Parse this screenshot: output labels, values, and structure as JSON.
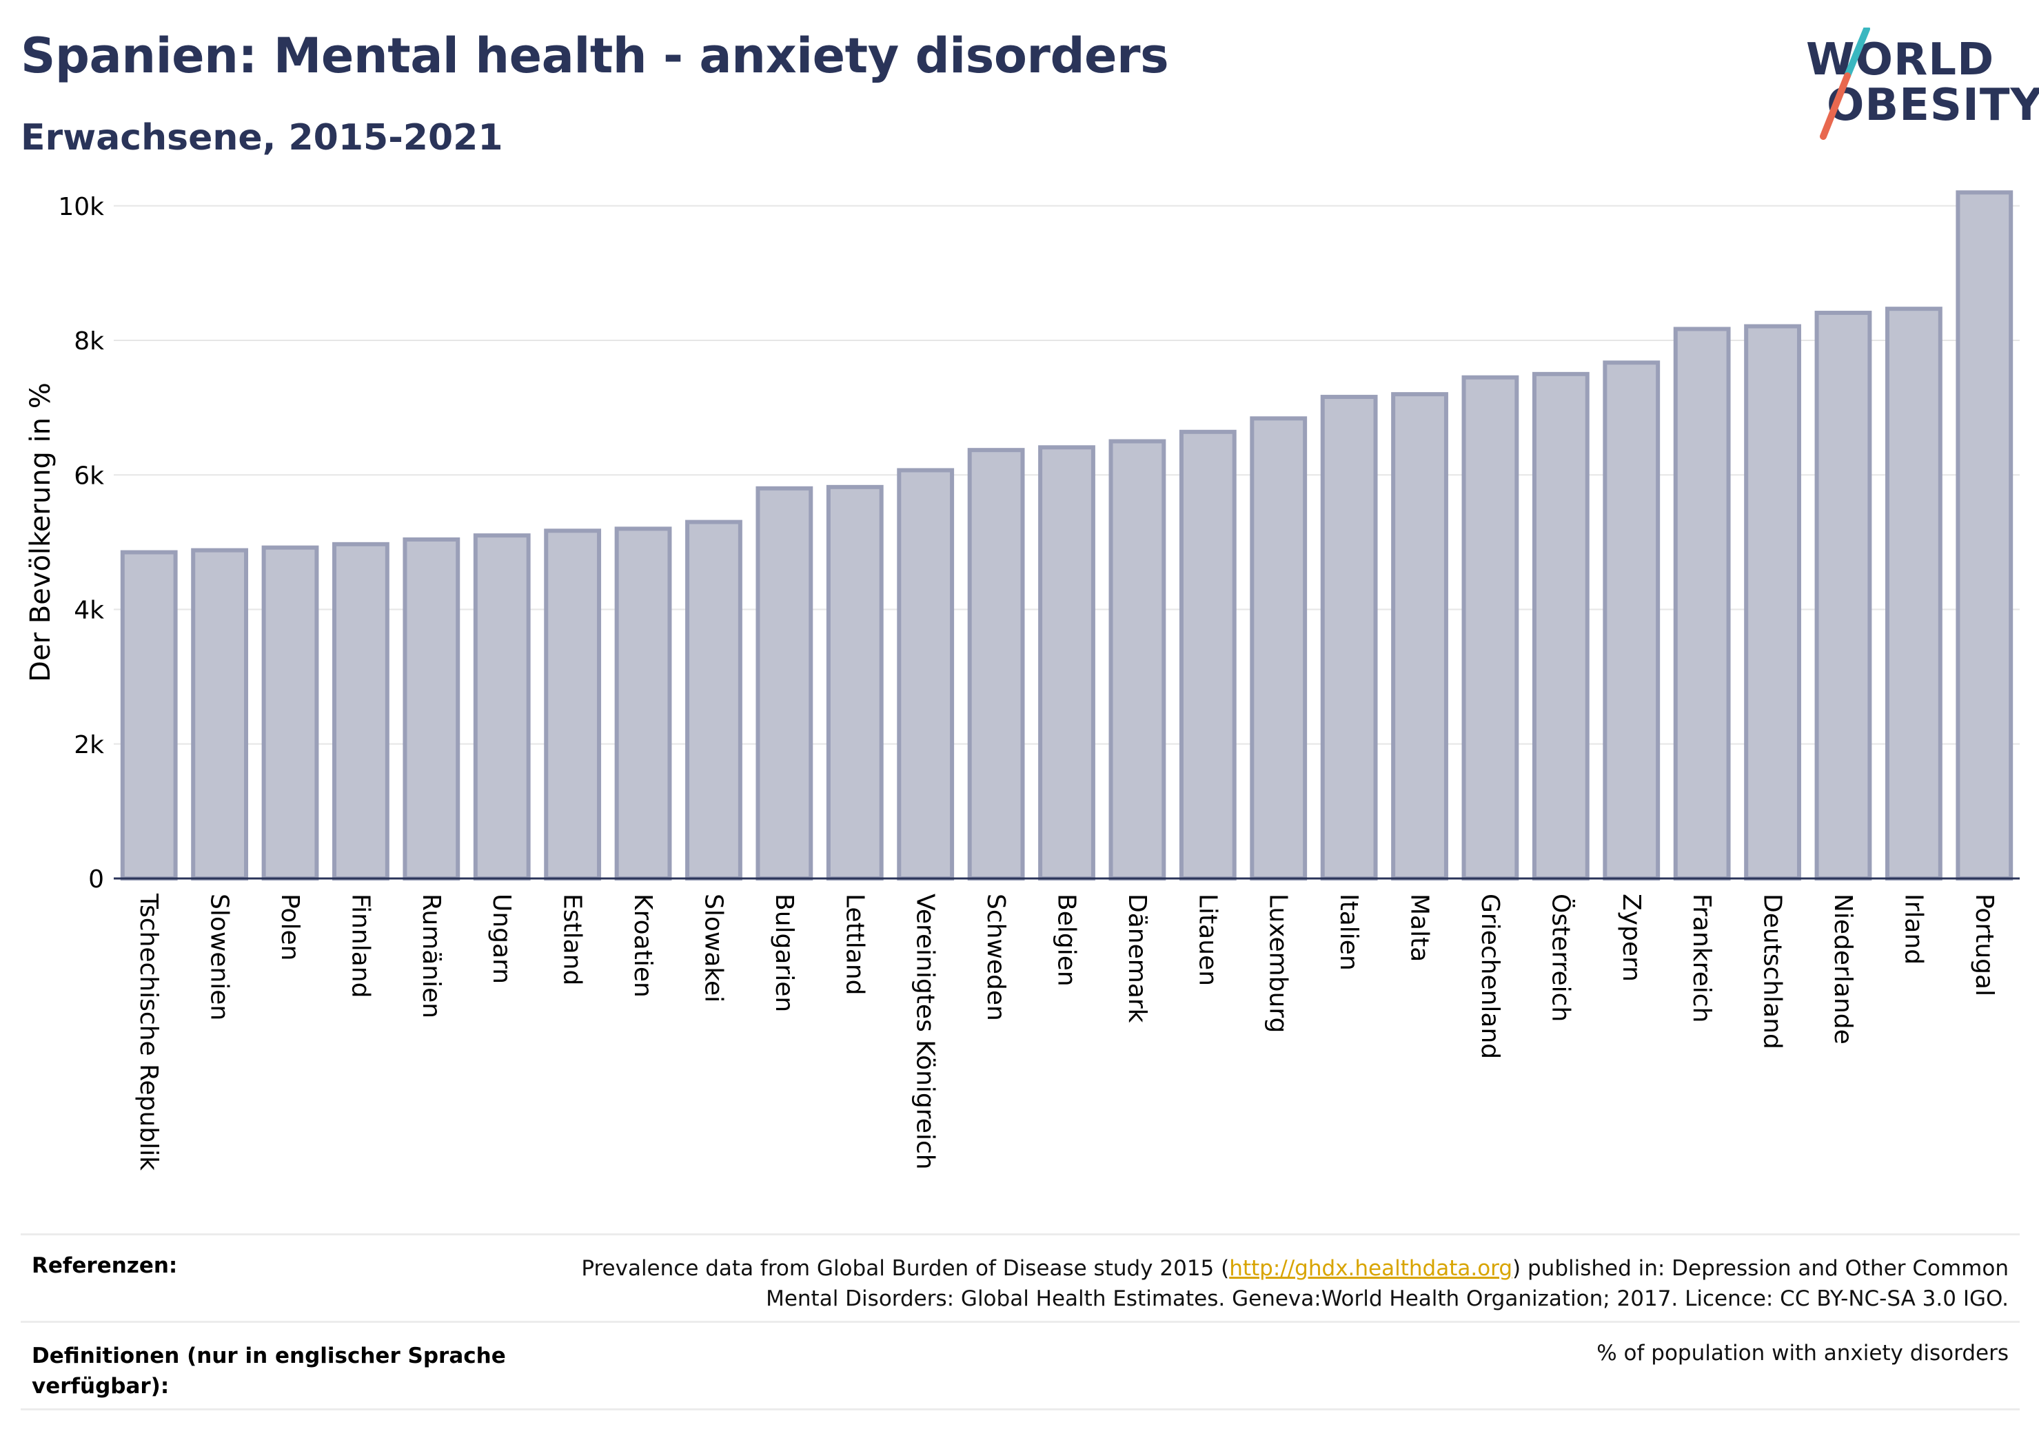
{
  "header": {
    "title": "Spanien: Mental health - anxiety disorders",
    "subtitle": "Erwachsene, 2015-2021"
  },
  "logo": {
    "line1": "WORLD",
    "line2": "OBESITY",
    "brand_color": "#2a3459",
    "slash_color_top": "#3ab7c0",
    "slash_color_bottom": "#e8684f"
  },
  "chart_data": {
    "type": "bar",
    "ylabel": "Der Bevölkerung in %",
    "xlabel": "",
    "ylim": [
      0,
      10500
    ],
    "yticks": [
      0,
      2000,
      4000,
      6000,
      8000,
      10000
    ],
    "ytick_labels": [
      "0",
      "2k",
      "4k",
      "6k",
      "8k",
      "10k"
    ],
    "grid": true,
    "bar_fill": "#bfc2d0",
    "bar_stroke": "#9a9fb8",
    "categories": [
      "Tschechische Republik",
      "Slowenien",
      "Polen",
      "Finnland",
      "Rumänien",
      "Ungarn",
      "Estland",
      "Kroatien",
      "Slowakei",
      "Bulgarien",
      "Lettland",
      "Vereinigtes Königreich",
      "Schweden",
      "Belgien",
      "Dänemark",
      "Litauen",
      "Luxemburg",
      "Italien",
      "Malta",
      "Griechenland",
      "Österreich",
      "Zypern",
      "Frankreich",
      "Deutschland",
      "Niederlande",
      "Irland",
      "Portugal"
    ],
    "values": [
      4850,
      4880,
      4920,
      4970,
      5040,
      5100,
      5170,
      5200,
      5300,
      5800,
      5820,
      6070,
      6370,
      6410,
      6500,
      6640,
      6840,
      7160,
      7200,
      7450,
      7500,
      7670,
      8170,
      8210,
      8410,
      8470,
      10200
    ]
  },
  "references": {
    "label": "Referenzen:",
    "text_before": "Prevalence data from Global Burden of Disease study 2015 (",
    "link": "http://ghdx.healthdata.org",
    "text_after": ") published in: Depression and Other Common",
    "line2": "Mental Disorders: Global Health Estimates. Geneva:World Health Organization; 2017. Licence: CC BY-NC-SA 3.0 IGO."
  },
  "definitions": {
    "label_line1": "Definitionen (nur in englischer Sprache",
    "label_line2": "verfügbar):",
    "text": "% of population with anxiety disorders"
  }
}
